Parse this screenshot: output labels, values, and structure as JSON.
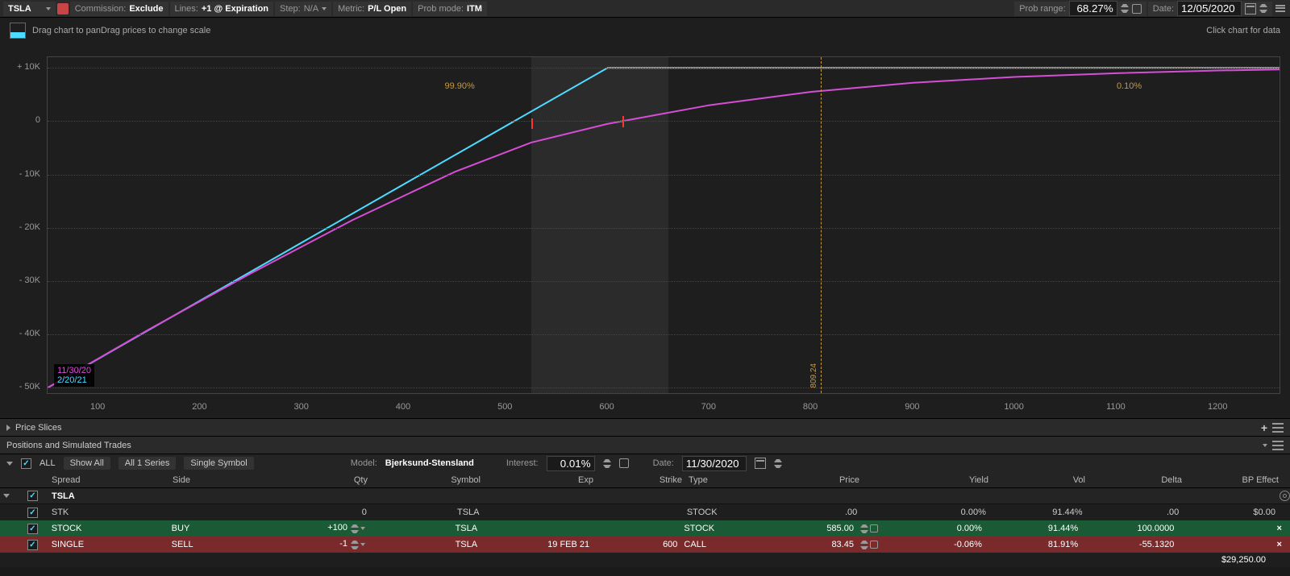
{
  "toolbar": {
    "symbol": "TSLA",
    "commission_label": "Commission:",
    "commission_value": "Exclude",
    "lines_label": "Lines:",
    "lines_value": "+1 @ Expiration",
    "step_label": "Step:",
    "step_value": "N/A",
    "metric_label": "Metric:",
    "metric_value": "P/L Open",
    "probmode_label": "Prob mode:",
    "probmode_value": "ITM",
    "probrange_label": "Prob range:",
    "probrange_value": "68.27%",
    "date_label": "Date:",
    "date_value": "12/05/2020"
  },
  "chart": {
    "hint_left": "Drag chart to panDrag prices to change scale",
    "hint_right": "Click chart for data",
    "y_ticks": [
      {
        "label": "+ 10K",
        "value": 10000
      },
      {
        "label": "0",
        "value": 0
      },
      {
        "label": "- 10K",
        "value": -10000
      },
      {
        "label": "- 20K",
        "value": -20000
      },
      {
        "label": "- 30K",
        "value": -30000
      },
      {
        "label": "- 40K",
        "value": -40000
      },
      {
        "label": "- 50K",
        "value": -50000
      }
    ],
    "x_ticks": [
      100,
      200,
      300,
      400,
      500,
      600,
      700,
      800,
      900,
      1000,
      1100,
      1200
    ],
    "x_min": 50,
    "x_max": 1260,
    "y_min": -51000,
    "y_max": 12000,
    "prob_band_low": 525,
    "prob_band_high": 660,
    "prob_left_text": "99.90%",
    "prob_left_x": 440,
    "prob_right_text": "0.10%",
    "prob_right_x": 1100,
    "price_marker": {
      "x": 809.24,
      "label": "809.24"
    },
    "red_marks": [
      {
        "x": 525,
        "y_top": 500,
        "y_bot": -1500
      },
      {
        "x": 615,
        "y_top": 1000,
        "y_bot": -1200
      }
    ],
    "legend": {
      "date_purple": "11/30/20",
      "date_cyan": "2/20/21"
    },
    "line_cyan_color": "#4ddbff",
    "line_purple_color": "#d64dd6",
    "cyan_series": [
      {
        "x": 50,
        "y": -50000
      },
      {
        "x": 600,
        "y": 10000
      },
      {
        "x": 1260,
        "y": 10000
      }
    ],
    "purple_series": [
      {
        "x": 50,
        "y": -50000
      },
      {
        "x": 150,
        "y": -39000
      },
      {
        "x": 250,
        "y": -28500
      },
      {
        "x": 350,
        "y": -18500
      },
      {
        "x": 450,
        "y": -9500
      },
      {
        "x": 525,
        "y": -4000
      },
      {
        "x": 600,
        "y": -500
      },
      {
        "x": 700,
        "y": 3000
      },
      {
        "x": 800,
        "y": 5500
      },
      {
        "x": 900,
        "y": 7200
      },
      {
        "x": 1000,
        "y": 8300
      },
      {
        "x": 1100,
        "y": 9000
      },
      {
        "x": 1200,
        "y": 9500
      },
      {
        "x": 1260,
        "y": 9700
      }
    ]
  },
  "slices_header": "Price Slices",
  "positions_header": "Positions and Simulated Trades",
  "controls": {
    "all": "ALL",
    "show_all": "Show All",
    "all_series": "All 1 Series",
    "single_symbol": "Single Symbol",
    "model_label": "Model:",
    "model_value": "Bjerksund-Stensland",
    "interest_label": "Interest:",
    "interest_value": "0.01%",
    "date_label": "Date:",
    "date_value": "11/30/2020"
  },
  "table": {
    "columns": {
      "spread": "Spread",
      "side": "Side",
      "qty": "Qty",
      "symbol": "Symbol",
      "exp": "Exp",
      "strike": "Strike",
      "type": "Type",
      "price": "Price",
      "yield": "Yield",
      "vol": "Vol",
      "delta": "Delta",
      "bpeffect": "BP Effect"
    },
    "ticker": "TSLA",
    "rows": [
      {
        "class": "row-dark",
        "checked": true,
        "spread": "STK",
        "side": "",
        "qty": "0",
        "symbol": "TSLA",
        "exp": "",
        "strike": "",
        "type": "STOCK",
        "price": ".00",
        "yield": "0.00%",
        "vol": "91.44%",
        "delta": ".00",
        "bpeffect": "$0.00",
        "has_controls": false
      },
      {
        "class": "row-green",
        "checked": true,
        "spread": "STOCK",
        "side": "BUY",
        "qty": "+100",
        "symbol": "TSLA",
        "exp": "",
        "strike": "",
        "type": "STOCK",
        "price": "585.00",
        "yield": "0.00%",
        "vol": "91.44%",
        "delta": "100.0000",
        "bpeffect": "",
        "has_controls": true
      },
      {
        "class": "row-red",
        "checked": true,
        "spread": "SINGLE",
        "side": "SELL",
        "qty": "-1",
        "symbol": "TSLA",
        "exp": "19 FEB 21",
        "strike": "600",
        "type": "CALL",
        "price": "83.45",
        "yield": "-0.06%",
        "vol": "81.91%",
        "delta": "-55.1320",
        "bpeffect": "",
        "has_controls": true
      }
    ],
    "total": "$29,250.00"
  }
}
